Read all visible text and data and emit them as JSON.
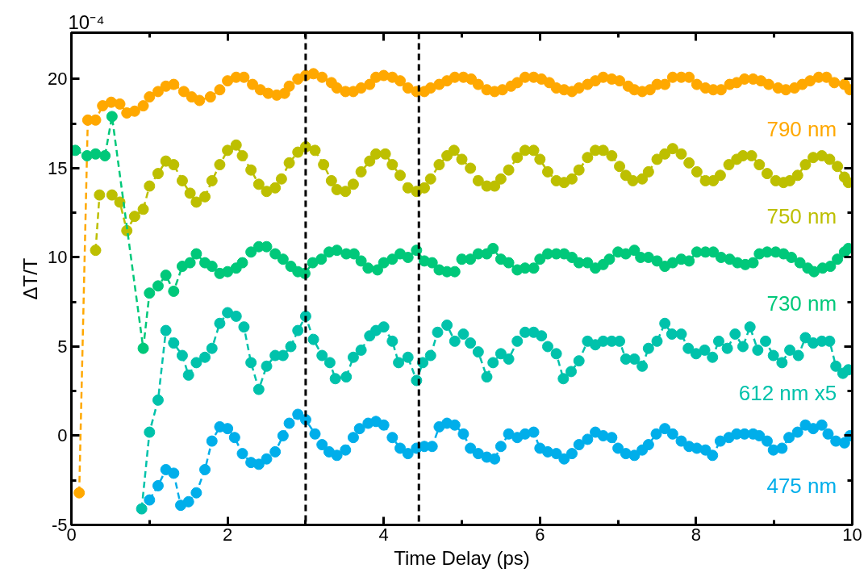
{
  "chart_data": {
    "type": "line",
    "xlabel": "Time Delay (ps)",
    "ylabel": "ΔT/T",
    "annotations": [
      "10⁻⁴"
    ],
    "xlim": [
      0,
      10
    ],
    "ylim": [
      -5,
      22.6
    ],
    "xticks": [
      0,
      {
        "value": 1,
        "label": null
      },
      2,
      {
        "value": 3,
        "label": null
      },
      4,
      {
        "value": 5,
        "label": null
      },
      6,
      {
        "value": 7,
        "label": null
      },
      8,
      {
        "value": 9,
        "label": null
      },
      10
    ],
    "yticks": [
      -5,
      {
        "value": -2.5,
        "label": null
      },
      0,
      {
        "value": 2.5,
        "label": null
      },
      5,
      {
        "value": 7.5,
        "label": null
      },
      10,
      {
        "value": 12.5,
        "label": null
      },
      15,
      {
        "value": 17.5,
        "label": null
      },
      20
    ],
    "grid": false,
    "marker": "circle",
    "line_style": "dashed",
    "ref_lines": [
      {
        "axis": "x",
        "value": 3.0,
        "label": null,
        "color": "#000000",
        "line_style": "dashed"
      },
      {
        "axis": "x",
        "value": 4.45,
        "label": null,
        "color": "#000000",
        "line_style": "dashed"
      }
    ],
    "series": [
      {
        "name": "790 nm",
        "color": "#ffa800",
        "x": [
          0.1,
          0.21,
          0.31,
          0.4,
          0.51,
          0.62,
          0.71,
          0.81,
          0.92,
          1.0,
          1.11,
          1.21,
          1.31,
          1.44,
          1.54,
          1.64,
          1.78,
          1.9,
          2.0,
          2.11,
          2.21,
          2.32,
          2.42,
          2.52,
          2.63,
          2.73,
          2.79,
          2.9,
          3.0,
          3.1,
          3.21,
          3.33,
          3.4,
          3.51,
          3.61,
          3.71,
          3.82,
          3.9,
          4.0,
          4.11,
          4.21,
          4.31,
          4.42,
          4.52,
          4.6,
          4.71,
          4.81,
          4.91,
          5.02,
          5.12,
          5.21,
          5.32,
          5.42,
          5.52,
          5.63,
          5.71,
          5.81,
          5.92,
          6.02,
          6.12,
          6.21,
          6.31,
          6.41,
          6.5,
          6.61,
          6.71,
          6.81,
          6.92,
          7.02,
          7.13,
          7.21,
          7.31,
          7.41,
          7.5,
          7.6,
          7.7,
          7.81,
          7.91,
          8.01,
          8.12,
          8.22,
          8.32,
          8.43,
          8.52,
          8.62,
          8.73,
          8.83,
          8.93,
          9.05,
          9.15,
          9.26,
          9.36,
          9.46,
          9.57,
          9.67,
          9.77,
          9.9,
          9.97
        ],
        "values": [
          -3.2,
          17.7,
          17.7,
          18.5,
          18.7,
          18.6,
          18.1,
          18.2,
          18.5,
          19.0,
          19.3,
          19.6,
          19.7,
          19.3,
          19.0,
          18.8,
          19.0,
          19.4,
          19.9,
          20.1,
          20.1,
          19.7,
          19.4,
          19.2,
          19.1,
          19.2,
          19.6,
          20.0,
          20.2,
          20.3,
          20.1,
          19.8,
          19.5,
          19.3,
          19.3,
          19.5,
          19.7,
          20.1,
          20.2,
          20.1,
          19.9,
          19.5,
          19.3,
          19.3,
          19.5,
          19.7,
          19.9,
          20.1,
          20.1,
          20.0,
          19.7,
          19.4,
          19.3,
          19.4,
          19.6,
          19.8,
          20.1,
          20.1,
          20.0,
          19.8,
          19.5,
          19.4,
          19.3,
          19.5,
          19.7,
          19.9,
          20.1,
          20.0,
          19.9,
          19.6,
          19.4,
          19.3,
          19.4,
          19.7,
          19.7,
          20.1,
          20.1,
          20.1,
          19.7,
          19.5,
          19.4,
          19.4,
          19.7,
          19.8,
          20.0,
          20.0,
          19.9,
          19.7,
          19.5,
          19.4,
          19.5,
          19.7,
          19.9,
          20.1,
          20.1,
          19.8,
          19.7,
          19.4
        ]
      },
      {
        "name": "750 nm",
        "color": "#bdbf00",
        "x": [
          0.31,
          0.36,
          0.52,
          0.62,
          0.71,
          0.81,
          0.92,
          1.0,
          1.11,
          1.21,
          1.31,
          1.42,
          1.52,
          1.6,
          1.71,
          1.8,
          1.9,
          2.0,
          2.11,
          2.19,
          2.3,
          2.4,
          2.5,
          2.61,
          2.69,
          2.79,
          2.9,
          3.0,
          3.12,
          3.23,
          3.33,
          3.4,
          3.51,
          3.61,
          3.71,
          3.82,
          3.9,
          4.02,
          4.11,
          4.21,
          4.31,
          4.42,
          4.52,
          4.6,
          4.71,
          4.81,
          4.9,
          5.0,
          5.11,
          5.21,
          5.32,
          5.42,
          5.5,
          5.6,
          5.71,
          5.81,
          5.92,
          6.0,
          6.1,
          6.21,
          6.31,
          6.41,
          6.5,
          6.61,
          6.71,
          6.81,
          6.92,
          7.02,
          7.1,
          7.19,
          7.31,
          7.39,
          7.5,
          7.6,
          7.7,
          7.81,
          7.91,
          8.01,
          8.12,
          8.22,
          8.31,
          8.42,
          8.52,
          8.6,
          8.71,
          8.81,
          8.91,
          9.02,
          9.12,
          9.2,
          9.3,
          9.4,
          9.5,
          9.61,
          9.71,
          9.81,
          9.9,
          9.95
        ],
        "values": [
          10.4,
          13.5,
          13.5,
          13.1,
          11.5,
          12.3,
          12.7,
          14.0,
          14.7,
          15.4,
          15.2,
          14.3,
          13.6,
          13.1,
          13.4,
          14.3,
          15.2,
          16.0,
          16.3,
          15.7,
          14.9,
          14.1,
          13.7,
          13.9,
          14.4,
          15.3,
          15.9,
          16.2,
          16.0,
          15.2,
          14.3,
          13.8,
          13.7,
          14.1,
          14.8,
          15.4,
          15.8,
          15.8,
          15.2,
          14.6,
          13.9,
          13.7,
          13.9,
          14.4,
          15.2,
          15.7,
          16.0,
          15.5,
          15.0,
          14.3,
          14.0,
          14.0,
          14.4,
          14.9,
          15.6,
          16.0,
          16.0,
          15.5,
          14.8,
          14.3,
          14.2,
          14.4,
          14.9,
          15.6,
          16.0,
          16.0,
          15.7,
          15.1,
          14.6,
          14.3,
          14.4,
          14.8,
          15.5,
          15.8,
          16.1,
          15.8,
          15.3,
          14.8,
          14.3,
          14.3,
          14.6,
          15.2,
          15.5,
          15.7,
          15.7,
          15.2,
          14.7,
          14.3,
          14.2,
          14.3,
          14.6,
          15.2,
          15.6,
          15.7,
          15.5,
          15.1,
          14.5,
          14.2
        ]
      },
      {
        "name": "730 nm",
        "color": "#00c87a",
        "x": [
          0.05,
          0.2,
          0.31,
          0.43,
          0.52,
          0.92,
          1.0,
          1.11,
          1.21,
          1.31,
          1.42,
          1.52,
          1.6,
          1.71,
          1.8,
          1.9,
          2.0,
          2.11,
          2.19,
          2.3,
          2.4,
          2.5,
          2.61,
          2.71,
          2.81,
          2.9,
          2.99,
          3.09,
          3.2,
          3.3,
          3.4,
          3.52,
          3.62,
          3.71,
          3.8,
          3.92,
          4.0,
          4.11,
          4.21,
          4.31,
          4.42,
          4.52,
          4.62,
          4.71,
          4.81,
          4.91,
          5.0,
          5.11,
          5.21,
          5.32,
          5.4,
          5.5,
          5.6,
          5.71,
          5.81,
          5.92,
          6.0,
          6.1,
          6.21,
          6.31,
          6.41,
          6.5,
          6.61,
          6.71,
          6.81,
          6.89,
          7.0,
          7.1,
          7.21,
          7.29,
          7.39,
          7.5,
          7.6,
          7.7,
          7.81,
          7.91,
          8.01,
          8.12,
          8.22,
          8.32,
          8.43,
          8.53,
          8.63,
          8.73,
          8.81,
          8.91,
          9.02,
          9.12,
          9.22,
          9.33,
          9.43,
          9.51,
          9.62,
          9.72,
          9.81,
          9.9,
          9.95
        ],
        "values": [
          16.0,
          15.7,
          15.8,
          15.7,
          17.9,
          4.9,
          8.0,
          8.4,
          9.0,
          8.1,
          9.5,
          9.7,
          10.2,
          9.7,
          9.5,
          9.1,
          9.2,
          9.4,
          9.7,
          10.3,
          10.6,
          10.6,
          10.2,
          9.9,
          9.5,
          9.2,
          9.1,
          9.7,
          9.9,
          10.3,
          10.4,
          10.2,
          10.2,
          9.8,
          9.4,
          9.3,
          9.7,
          9.9,
          10.2,
          10.0,
          10.4,
          9.8,
          9.7,
          9.3,
          9.2,
          9.2,
          9.9,
          9.9,
          10.2,
          10.2,
          10.5,
          9.9,
          9.7,
          9.3,
          9.4,
          9.4,
          9.9,
          10.2,
          10.2,
          10.2,
          10.0,
          9.7,
          9.7,
          9.4,
          9.6,
          9.9,
          10.3,
          10.2,
          10.4,
          10.0,
          10.0,
          9.8,
          9.5,
          9.7,
          9.9,
          9.8,
          10.3,
          10.3,
          10.3,
          10.0,
          9.9,
          9.7,
          9.6,
          9.7,
          10.2,
          10.3,
          10.3,
          10.2,
          10.0,
          9.7,
          9.4,
          9.2,
          9.4,
          9.5,
          9.9,
          10.3,
          10.5
        ]
      },
      {
        "name": "612 nm x5",
        "color": "#00c2ab",
        "x": [
          0.9,
          1.0,
          1.11,
          1.21,
          1.31,
          1.42,
          1.5,
          1.6,
          1.71,
          1.8,
          1.9,
          2.0,
          2.11,
          2.21,
          2.3,
          2.4,
          2.5,
          2.61,
          2.71,
          2.81,
          2.9,
          3.0,
          3.1,
          3.21,
          3.31,
          3.38,
          3.52,
          3.61,
          3.71,
          3.82,
          3.9,
          4.0,
          4.11,
          4.19,
          4.31,
          4.42,
          4.5,
          4.6,
          4.69,
          4.81,
          4.91,
          5.02,
          5.11,
          5.21,
          5.32,
          5.4,
          5.5,
          5.6,
          5.71,
          5.81,
          5.92,
          6.02,
          6.1,
          6.21,
          6.3,
          6.4,
          6.5,
          6.61,
          6.71,
          6.81,
          6.92,
          7.02,
          7.1,
          7.21,
          7.31,
          7.39,
          7.5,
          7.6,
          7.69,
          7.81,
          7.9,
          8.0,
          8.11,
          8.21,
          8.29,
          8.4,
          8.5,
          8.6,
          8.69,
          8.79,
          8.89,
          8.99,
          9.1,
          9.2,
          9.31,
          9.4,
          9.5,
          9.61,
          9.71,
          9.79,
          9.88,
          9.95
        ],
        "values": [
          -4.1,
          0.2,
          2.0,
          5.9,
          5.2,
          4.5,
          3.4,
          4.1,
          4.4,
          4.9,
          6.3,
          6.9,
          6.7,
          6.1,
          4.1,
          2.6,
          3.9,
          4.5,
          4.5,
          5.0,
          5.9,
          6.7,
          5.4,
          4.5,
          4.1,
          3.2,
          3.3,
          4.4,
          4.8,
          5.6,
          5.9,
          6.1,
          5.3,
          4.1,
          4.4,
          3.1,
          4.1,
          4.5,
          5.8,
          6.2,
          5.3,
          5.7,
          5.2,
          4.7,
          3.3,
          4.1,
          4.6,
          4.3,
          5.3,
          5.8,
          5.8,
          5.6,
          5.0,
          4.6,
          3.2,
          3.6,
          4.2,
          5.3,
          5.1,
          5.3,
          5.3,
          5.3,
          4.3,
          4.3,
          3.9,
          4.9,
          5.3,
          6.3,
          5.7,
          5.7,
          4.9,
          4.6,
          4.8,
          4.4,
          5.3,
          4.9,
          5.7,
          5.0,
          6.1,
          4.8,
          5.3,
          4.5,
          4.1,
          4.8,
          4.5,
          5.5,
          5.2,
          5.3,
          5.3,
          3.9,
          3.5,
          3.7
        ]
      },
      {
        "name": "475 nm",
        "color": "#00aeea",
        "x": [
          1.0,
          1.11,
          1.21,
          1.31,
          1.4,
          1.5,
          1.6,
          1.71,
          1.8,
          1.9,
          2.0,
          2.09,
          2.19,
          2.3,
          2.4,
          2.5,
          2.61,
          2.71,
          2.79,
          2.9,
          3.0,
          3.12,
          3.21,
          3.3,
          3.4,
          3.51,
          3.61,
          3.69,
          3.8,
          3.9,
          4.0,
          4.11,
          4.21,
          4.31,
          4.42,
          4.52,
          4.62,
          4.71,
          4.81,
          4.91,
          5.02,
          5.11,
          5.21,
          5.32,
          5.42,
          5.5,
          5.6,
          5.71,
          5.81,
          5.92,
          6.0,
          6.1,
          6.21,
          6.31,
          6.41,
          6.5,
          6.61,
          6.71,
          6.81,
          6.92,
          7.0,
          7.1,
          7.21,
          7.31,
          7.39,
          7.49,
          7.6,
          7.7,
          7.81,
          7.91,
          8.01,
          8.12,
          8.21,
          8.31,
          8.42,
          8.52,
          8.62,
          8.73,
          8.81,
          8.91,
          8.99,
          9.1,
          9.19,
          9.3,
          9.4,
          9.5,
          9.61,
          9.69,
          9.79,
          9.9,
          9.97
        ],
        "values": [
          -3.6,
          -2.8,
          -1.9,
          -2.1,
          -3.9,
          -3.7,
          -3.2,
          -1.9,
          -0.3,
          0.5,
          0.4,
          -0.1,
          -1.0,
          -1.5,
          -1.6,
          -1.3,
          -0.9,
          0.0,
          0.7,
          1.2,
          0.9,
          0.1,
          -0.5,
          -0.9,
          -1.1,
          -0.8,
          -0.1,
          0.4,
          0.7,
          0.8,
          0.6,
          -0.1,
          -0.7,
          -1.0,
          -0.7,
          -0.6,
          -0.6,
          0.5,
          0.7,
          0.6,
          0.1,
          -0.7,
          -1.0,
          -1.2,
          -1.3,
          -0.6,
          0.1,
          -0.1,
          0.1,
          0.2,
          -0.7,
          -0.9,
          -1.0,
          -1.3,
          -1.0,
          -0.5,
          -0.2,
          0.2,
          0.0,
          -0.1,
          -0.7,
          -1.0,
          -1.1,
          -0.8,
          -0.5,
          0.1,
          0.4,
          0.1,
          -0.3,
          -0.6,
          -0.7,
          -0.8,
          -1.1,
          -0.3,
          -0.1,
          0.1,
          0.1,
          0.1,
          0.0,
          -0.3,
          -0.8,
          -0.7,
          -0.1,
          0.2,
          0.6,
          0.4,
          0.6,
          0.1,
          -0.3,
          -0.4,
          0.0
        ]
      }
    ]
  }
}
